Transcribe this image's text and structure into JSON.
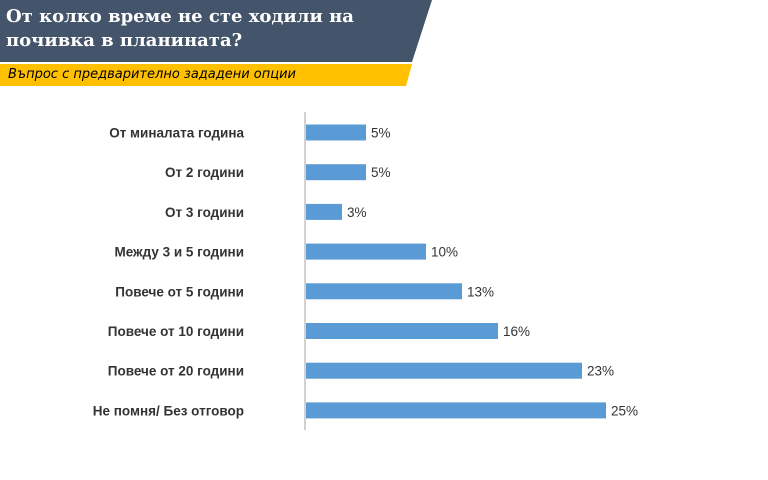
{
  "title": "От колко време не сте ходили на почивка в планината?",
  "subtitle": "Въпрос с предварително зададени опции",
  "colors": {
    "banner": "#44546a",
    "subtitle_band": "#ffc000",
    "bar": "#5b9bd5",
    "axis": "#a6a6a6"
  },
  "chart_data": {
    "type": "bar",
    "orientation": "horizontal",
    "categories": [
      "От миналата година",
      "От 2 години",
      "От 3 години",
      "Между 3 и 5 години",
      "Повече от 5 години",
      "Повече от 10 години",
      "Повече от 20 години",
      "Не помня/ Без отговор"
    ],
    "values": [
      5,
      5,
      3,
      10,
      13,
      16,
      23,
      25
    ],
    "value_labels": [
      "5%",
      "5%",
      "3%",
      "10%",
      "13%",
      "16%",
      "23%",
      "25%"
    ],
    "unit": "%",
    "xlim": [
      0,
      25
    ],
    "grid": false,
    "legend": "none"
  }
}
